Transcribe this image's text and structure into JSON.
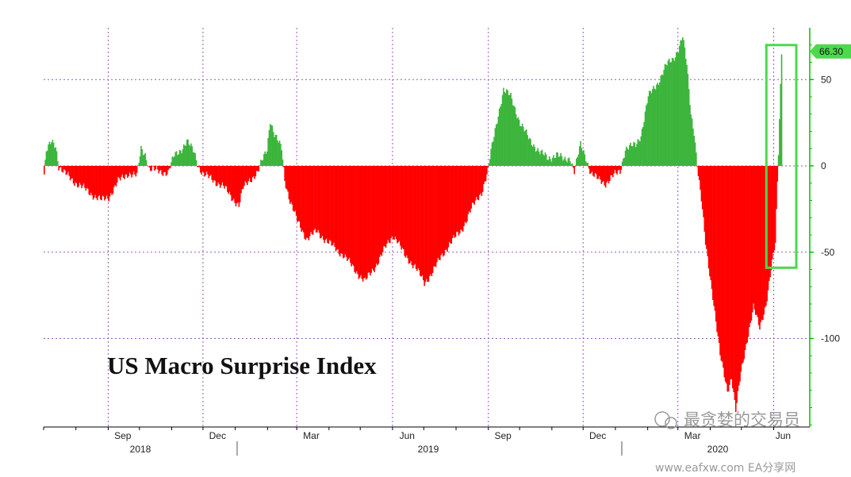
{
  "chart_data": {
    "type": "bar",
    "title": "US Macro Surprise Index",
    "xlabel": "",
    "ylabel": "",
    "ylim": [
      -150,
      75
    ],
    "y_ticks": [
      50,
      0,
      -50,
      -100
    ],
    "x_ticks": [
      "Sep",
      "Dec",
      "Mar",
      "Jun",
      "Sep",
      "Dec",
      "Mar",
      "Jun"
    ],
    "years": [
      "2018",
      "2019",
      "2020"
    ],
    "last_value_label": "66.30",
    "grid": true,
    "positive_color": "#3cb53c",
    "negative_color": "#ff0000",
    "highlight_color": "#4cd94c",
    "keypoints": [
      [
        "2018-07-01",
        -5
      ],
      [
        "2018-07-03",
        8
      ],
      [
        "2018-07-08",
        14
      ],
      [
        "2018-07-12",
        12
      ],
      [
        "2018-07-15",
        0
      ],
      [
        "2018-07-20",
        -4
      ],
      [
        "2018-08-01",
        -10
      ],
      [
        "2018-08-15",
        -16
      ],
      [
        "2018-08-25",
        -20
      ],
      [
        "2018-09-01",
        -18
      ],
      [
        "2018-09-10",
        -9
      ],
      [
        "2018-09-20",
        -4
      ],
      [
        "2018-09-28",
        -6
      ],
      [
        "2018-10-02",
        10
      ],
      [
        "2018-10-06",
        7
      ],
      [
        "2018-10-10",
        -2
      ],
      [
        "2018-10-20",
        -3
      ],
      [
        "2018-10-28",
        -4
      ],
      [
        "2018-11-03",
        6
      ],
      [
        "2018-11-10",
        10
      ],
      [
        "2018-11-15",
        14
      ],
      [
        "2018-11-22",
        8
      ],
      [
        "2018-11-26",
        0
      ],
      [
        "2018-12-01",
        -5
      ],
      [
        "2018-12-10",
        -8
      ],
      [
        "2018-12-20",
        -12
      ],
      [
        "2018-12-28",
        -18
      ],
      [
        "2019-01-04",
        -23
      ],
      [
        "2019-01-08",
        -13
      ],
      [
        "2019-01-14",
        -8
      ],
      [
        "2019-01-22",
        -4
      ],
      [
        "2019-01-27",
        4
      ],
      [
        "2019-01-31",
        10
      ],
      [
        "2019-02-03",
        27
      ],
      [
        "2019-02-07",
        18
      ],
      [
        "2019-02-14",
        10
      ],
      [
        "2019-02-17",
        -8
      ],
      [
        "2019-02-22",
        -20
      ],
      [
        "2019-03-01",
        -32
      ],
      [
        "2019-03-10",
        -42
      ],
      [
        "2019-03-20",
        -38
      ],
      [
        "2019-04-01",
        -45
      ],
      [
        "2019-04-15",
        -52
      ],
      [
        "2019-04-25",
        -60
      ],
      [
        "2019-05-05",
        -67
      ],
      [
        "2019-05-15",
        -58
      ],
      [
        "2019-05-25",
        -47
      ],
      [
        "2019-06-01",
        -40
      ],
      [
        "2019-06-05",
        -43
      ],
      [
        "2019-06-12",
        -52
      ],
      [
        "2019-06-22",
        -58
      ],
      [
        "2019-07-01",
        -68
      ],
      [
        "2019-07-08",
        -62
      ],
      [
        "2019-07-15",
        -55
      ],
      [
        "2019-07-25",
        -45
      ],
      [
        "2019-08-05",
        -38
      ],
      [
        "2019-08-15",
        -25
      ],
      [
        "2019-08-25",
        -15
      ],
      [
        "2019-08-31",
        -3
      ],
      [
        "2019-09-03",
        8
      ],
      [
        "2019-09-10",
        30
      ],
      [
        "2019-09-15",
        44
      ],
      [
        "2019-09-22",
        40
      ],
      [
        "2019-10-01",
        25
      ],
      [
        "2019-10-10",
        15
      ],
      [
        "2019-10-20",
        8
      ],
      [
        "2019-10-28",
        4
      ],
      [
        "2019-11-05",
        7
      ],
      [
        "2019-11-12",
        3
      ],
      [
        "2019-11-18",
        5
      ],
      [
        "2019-11-22",
        -3
      ],
      [
        "2019-11-28",
        12
      ],
      [
        "2019-12-03",
        5
      ],
      [
        "2019-12-08",
        -4
      ],
      [
        "2019-12-15",
        -8
      ],
      [
        "2019-12-22",
        -10
      ],
      [
        "2019-12-29",
        -6
      ],
      [
        "2020-01-05",
        -3
      ],
      [
        "2020-01-10",
        10
      ],
      [
        "2020-01-20",
        12
      ],
      [
        "2020-01-25",
        18
      ],
      [
        "2020-02-01",
        40
      ],
      [
        "2020-02-10",
        48
      ],
      [
        "2020-02-18",
        58
      ],
      [
        "2020-02-25",
        62
      ],
      [
        "2020-03-01",
        68
      ],
      [
        "2020-03-05",
        75
      ],
      [
        "2020-03-09",
        58
      ],
      [
        "2020-03-13",
        30
      ],
      [
        "2020-03-16",
        20
      ],
      [
        "2020-03-20",
        -5
      ],
      [
        "2020-03-23",
        -20
      ],
      [
        "2020-03-27",
        -45
      ],
      [
        "2020-04-03",
        -75
      ],
      [
        "2020-04-10",
        -110
      ],
      [
        "2020-04-17",
        -130
      ],
      [
        "2020-04-21",
        -122
      ],
      [
        "2020-04-25",
        -142
      ],
      [
        "2020-04-30",
        -120
      ],
      [
        "2020-05-06",
        -100
      ],
      [
        "2020-05-12",
        -82
      ],
      [
        "2020-05-18",
        -94
      ],
      [
        "2020-05-24",
        -80
      ],
      [
        "2020-05-29",
        -60
      ],
      [
        "2020-06-02",
        -45
      ],
      [
        "2020-06-05",
        8
      ],
      [
        "2020-06-08",
        66.3
      ]
    ]
  },
  "watermark": {
    "brand": "最贪婪的交易员",
    "site": "www.eafxw.com  EA分享网"
  }
}
